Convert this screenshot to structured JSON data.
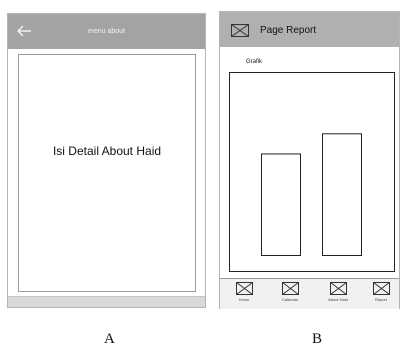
{
  "screen_a": {
    "header_title": "menu about",
    "content_text": "Isi Detail About Haid",
    "caption": "A"
  },
  "screen_b": {
    "header_title": "Page Report",
    "grafik_label": "Grafik",
    "chart_data": {
      "type": "bar",
      "categories": [
        "",
        ""
      ],
      "values": [
        111,
        133
      ],
      "ylim": [
        0,
        200
      ]
    },
    "tabs": [
      {
        "label": "Home",
        "icon": "placeholder-image-icon"
      },
      {
        "label": "Calendar",
        "icon": "placeholder-image-icon"
      },
      {
        "label": "About Haid",
        "icon": "placeholder-image-icon"
      },
      {
        "label": "Report",
        "icon": "placeholder-image-icon"
      }
    ],
    "caption": "B"
  },
  "colors": {
    "header_a": "#a3a3a3",
    "header_b": "#b0b0b0",
    "border": "#9a9a9a"
  }
}
